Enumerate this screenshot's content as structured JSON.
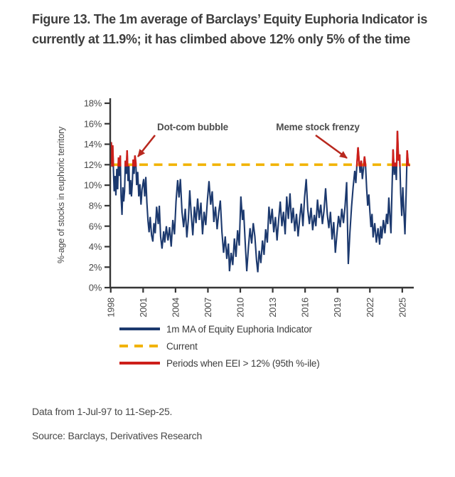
{
  "title": "Figure 13. The 1m average of Barclays’ Equity Euphoria Indicator is currently at 11.9%; it has climbed above 12% only 5% of the time",
  "colors": {
    "navy": "#1c396e",
    "red": "#cd1f1a",
    "gold": "#f2b300",
    "arrow": "#b8281e",
    "axis": "#363636",
    "tick": "#4a4a4a",
    "title": "#3e3e3e",
    "body": "#474747",
    "anno": "#4d4d4d"
  },
  "chart_data": {
    "type": "line",
    "title": "",
    "xlabel": "",
    "ylabel": "%-age of stocks in euphoric territory",
    "ylim": [
      0,
      18
    ],
    "xlim": [
      1997.95,
      2025.8
    ],
    "ytick_step": 2,
    "ytick_suffix": "%",
    "xticks": [
      1998,
      2001,
      2004,
      2007,
      2010,
      2013,
      2016,
      2019,
      2022,
      2025
    ],
    "grid": false,
    "legend_position": "bottom",
    "threshold": {
      "label": "Current",
      "value": 12
    },
    "highlight_rule": "EEI > 12% drawn in red",
    "legend": [
      {
        "key": "navy",
        "label": "1m MA of Equity Euphoria Indicator"
      },
      {
        "key": "gold",
        "label": "Current"
      },
      {
        "key": "red",
        "label": "Periods when EEI > 12% (95th %-ile)"
      }
    ],
    "annotations": [
      {
        "label": "Dot-com bubble",
        "points_to_year": 2000.5
      },
      {
        "label": "Meme stock frenzy",
        "points_to_year": 2020.3
      }
    ],
    "series": [
      {
        "name": "1m MA of Equity Euphoria Indicator",
        "color_key": "navy",
        "points": [
          [
            1998.0,
            12.1
          ],
          [
            1998.05,
            14.2
          ],
          [
            1998.12,
            11.8
          ],
          [
            1998.18,
            13.9
          ],
          [
            1998.25,
            11.4
          ],
          [
            1998.32,
            9.4
          ],
          [
            1998.4,
            10.9
          ],
          [
            1998.48,
            9.0
          ],
          [
            1998.56,
            11.6
          ],
          [
            1998.64,
            9.6
          ],
          [
            1998.72,
            12.7
          ],
          [
            1998.8,
            10.9
          ],
          [
            1998.88,
            12.9
          ],
          [
            1998.96,
            8.9
          ],
          [
            1999.04,
            7.1
          ],
          [
            1999.12,
            9.8
          ],
          [
            1999.2,
            8.4
          ],
          [
            1999.28,
            9.4
          ],
          [
            1999.36,
            12.4
          ],
          [
            1999.44,
            11.1
          ],
          [
            1999.52,
            13.4
          ],
          [
            1999.6,
            10.4
          ],
          [
            1999.68,
            11.9
          ],
          [
            1999.76,
            9.1
          ],
          [
            1999.84,
            10.5
          ],
          [
            1999.92,
            8.9
          ],
          [
            2000.0,
            10.2
          ],
          [
            2000.08,
            12.5
          ],
          [
            2000.16,
            11.1
          ],
          [
            2000.24,
            12.9
          ],
          [
            2000.32,
            12.2
          ],
          [
            2000.4,
            10.0
          ],
          [
            2000.5,
            11.3
          ],
          [
            2000.6,
            8.9
          ],
          [
            2000.7,
            10.1
          ],
          [
            2000.8,
            8.1
          ],
          [
            2000.9,
            9.6
          ],
          [
            2001.05,
            10.6
          ],
          [
            2001.15,
            8.9
          ],
          [
            2001.25,
            10.8
          ],
          [
            2001.35,
            8.3
          ],
          [
            2001.45,
            6.5
          ],
          [
            2001.55,
            5.4
          ],
          [
            2001.65,
            6.9
          ],
          [
            2001.78,
            5.1
          ],
          [
            2001.9,
            4.5
          ],
          [
            2002.0,
            6.3
          ],
          [
            2002.12,
            5.3
          ],
          [
            2002.25,
            7.9
          ],
          [
            2002.4,
            6.2
          ],
          [
            2002.5,
            8.0
          ],
          [
            2002.62,
            5.0
          ],
          [
            2002.75,
            3.8
          ],
          [
            2002.9,
            5.5
          ],
          [
            2003.0,
            4.4
          ],
          [
            2003.15,
            6.0
          ],
          [
            2003.3,
            4.6
          ],
          [
            2003.45,
            5.9
          ],
          [
            2003.6,
            4.0
          ],
          [
            2003.75,
            6.6
          ],
          [
            2003.9,
            5.2
          ],
          [
            2004.05,
            8.4
          ],
          [
            2004.2,
            10.5
          ],
          [
            2004.32,
            8.8
          ],
          [
            2004.45,
            10.6
          ],
          [
            2004.6,
            7.4
          ],
          [
            2004.75,
            5.9
          ],
          [
            2004.9,
            7.7
          ],
          [
            2005.05,
            4.9
          ],
          [
            2005.2,
            6.8
          ],
          [
            2005.32,
            9.5
          ],
          [
            2005.45,
            7.2
          ],
          [
            2005.6,
            5.1
          ],
          [
            2005.75,
            7.9
          ],
          [
            2005.9,
            6.3
          ],
          [
            2006.05,
            8.7
          ],
          [
            2006.2,
            6.6
          ],
          [
            2006.35,
            8.3
          ],
          [
            2006.5,
            5.2
          ],
          [
            2006.65,
            7.4
          ],
          [
            2006.8,
            6.1
          ],
          [
            2006.95,
            8.5
          ],
          [
            2007.1,
            10.4
          ],
          [
            2007.25,
            8.1
          ],
          [
            2007.4,
            9.4
          ],
          [
            2007.55,
            6.4
          ],
          [
            2007.7,
            7.9
          ],
          [
            2007.85,
            5.7
          ],
          [
            2008.0,
            7.3
          ],
          [
            2008.15,
            8.5
          ],
          [
            2008.3,
            5.4
          ],
          [
            2008.45,
            3.4
          ],
          [
            2008.6,
            5.0
          ],
          [
            2008.75,
            2.8
          ],
          [
            2008.9,
            4.3
          ],
          [
            2009.0,
            1.6
          ],
          [
            2009.15,
            3.4
          ],
          [
            2009.3,
            2.2
          ],
          [
            2009.45,
            4.8
          ],
          [
            2009.6,
            3.0
          ],
          [
            2009.75,
            5.6
          ],
          [
            2009.9,
            4.1
          ],
          [
            2010.05,
            8.9
          ],
          [
            2010.2,
            6.6
          ],
          [
            2010.3,
            7.6
          ],
          [
            2010.45,
            4.4
          ],
          [
            2010.6,
            1.6
          ],
          [
            2010.75,
            3.9
          ],
          [
            2010.9,
            5.8
          ],
          [
            2011.05,
            4.3
          ],
          [
            2011.2,
            6.3
          ],
          [
            2011.35,
            5.0
          ],
          [
            2011.5,
            2.7
          ],
          [
            2011.62,
            1.5
          ],
          [
            2011.75,
            3.6
          ],
          [
            2011.9,
            2.4
          ],
          [
            2012.05,
            4.6
          ],
          [
            2012.2,
            3.2
          ],
          [
            2012.35,
            5.7
          ],
          [
            2012.5,
            4.4
          ],
          [
            2012.65,
            7.9
          ],
          [
            2012.8,
            6.2
          ],
          [
            2012.95,
            7.7
          ],
          [
            2013.1,
            5.4
          ],
          [
            2013.25,
            6.9
          ],
          [
            2013.4,
            4.6
          ],
          [
            2013.55,
            6.6
          ],
          [
            2013.7,
            8.4
          ],
          [
            2013.85,
            6.0
          ],
          [
            2014.0,
            7.4
          ],
          [
            2014.15,
            5.2
          ],
          [
            2014.3,
            8.9
          ],
          [
            2014.45,
            6.7
          ],
          [
            2014.6,
            9.2
          ],
          [
            2014.75,
            6.3
          ],
          [
            2014.9,
            7.8
          ],
          [
            2015.05,
            5.5
          ],
          [
            2015.2,
            7.2
          ],
          [
            2015.35,
            5.0
          ],
          [
            2015.5,
            6.8
          ],
          [
            2015.65,
            8.2
          ],
          [
            2015.8,
            6.0
          ],
          [
            2015.95,
            8.8
          ],
          [
            2016.1,
            10.6
          ],
          [
            2016.25,
            7.6
          ],
          [
            2016.4,
            6.2
          ],
          [
            2016.55,
            7.8
          ],
          [
            2016.7,
            5.6
          ],
          [
            2016.85,
            7.1
          ],
          [
            2017.0,
            6.0
          ],
          [
            2017.15,
            8.6
          ],
          [
            2017.3,
            6.8
          ],
          [
            2017.45,
            8.1
          ],
          [
            2017.6,
            6.2
          ],
          [
            2017.75,
            7.5
          ],
          [
            2017.9,
            9.7
          ],
          [
            2018.05,
            7.2
          ],
          [
            2018.2,
            5.8
          ],
          [
            2018.35,
            7.4
          ],
          [
            2018.5,
            4.7
          ],
          [
            2018.65,
            6.4
          ],
          [
            2018.8,
            3.4
          ],
          [
            2018.95,
            5.3
          ],
          [
            2019.1,
            7.0
          ],
          [
            2019.25,
            5.9
          ],
          [
            2019.4,
            7.7
          ],
          [
            2019.55,
            6.3
          ],
          [
            2019.7,
            8.0
          ],
          [
            2019.85,
            10.3
          ],
          [
            2020.0,
            2.3
          ],
          [
            2020.15,
            5.4
          ],
          [
            2020.3,
            7.9
          ],
          [
            2020.45,
            9.8
          ],
          [
            2020.6,
            11.4
          ],
          [
            2020.7,
            10.2
          ],
          [
            2020.8,
            12.1
          ],
          [
            2020.9,
            13.7
          ],
          [
            2021.0,
            12.3
          ],
          [
            2021.1,
            11.2
          ],
          [
            2021.2,
            12.4
          ],
          [
            2021.3,
            10.6
          ],
          [
            2021.4,
            11.6
          ],
          [
            2021.5,
            12.8
          ],
          [
            2021.6,
            11.9
          ],
          [
            2021.7,
            9.7
          ],
          [
            2021.8,
            8.0
          ],
          [
            2021.9,
            9.1
          ],
          [
            2022.0,
            7.4
          ],
          [
            2022.1,
            5.9
          ],
          [
            2022.2,
            7.2
          ],
          [
            2022.3,
            4.9
          ],
          [
            2022.45,
            6.3
          ],
          [
            2022.6,
            4.4
          ],
          [
            2022.75,
            5.8
          ],
          [
            2022.9,
            4.2
          ],
          [
            2023.0,
            6.0
          ],
          [
            2023.1,
            4.8
          ],
          [
            2023.25,
            6.6
          ],
          [
            2023.4,
            5.3
          ],
          [
            2023.55,
            7.2
          ],
          [
            2023.65,
            6.2
          ],
          [
            2023.75,
            8.8
          ],
          [
            2023.85,
            7.0
          ],
          [
            2023.95,
            5.3
          ],
          [
            2024.05,
            9.6
          ],
          [
            2024.15,
            13.5
          ],
          [
            2024.25,
            11.0
          ],
          [
            2024.35,
            12.2
          ],
          [
            2024.45,
            10.5
          ],
          [
            2024.55,
            15.3
          ],
          [
            2024.65,
            12.4
          ],
          [
            2024.75,
            13.0
          ],
          [
            2024.85,
            9.2
          ],
          [
            2024.95,
            7.0
          ],
          [
            2025.05,
            9.8
          ],
          [
            2025.15,
            7.4
          ],
          [
            2025.25,
            5.2
          ],
          [
            2025.35,
            9.0
          ],
          [
            2025.45,
            13.4
          ],
          [
            2025.55,
            12.0
          ],
          [
            2025.7,
            11.9
          ]
        ]
      }
    ]
  },
  "footer": {
    "data_range": "Data from 1-Jul-97 to 11-Sep-25.",
    "source": "Source: Barclays, Derivatives Research"
  }
}
